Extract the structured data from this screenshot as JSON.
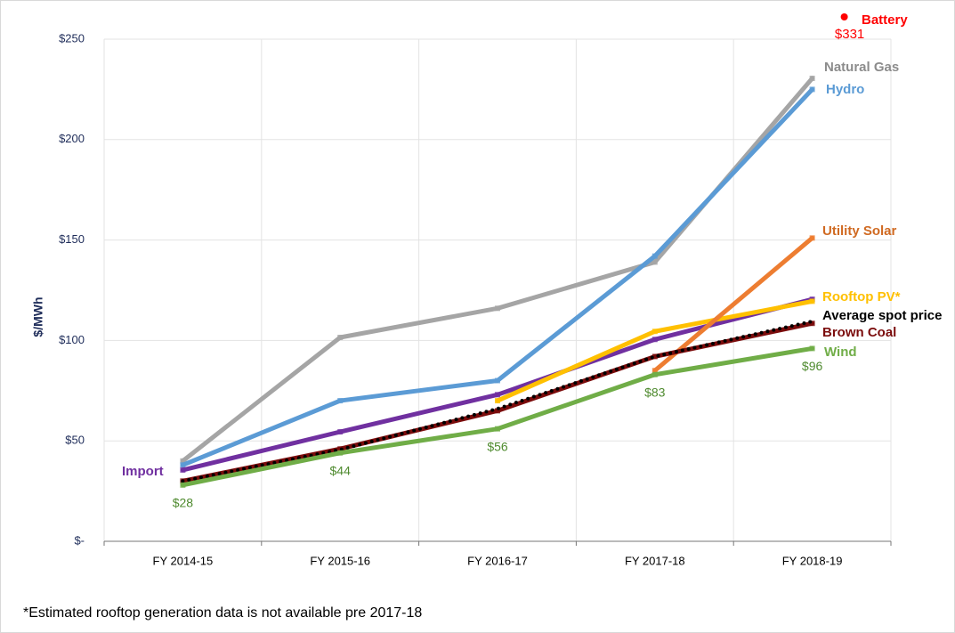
{
  "chart_data": {
    "type": "line",
    "y_label": "$/MWh",
    "footnote": "*Estimated rooftop generation data is not available pre 2017-18",
    "categories": [
      "FY 2014-15",
      "FY 2015-16",
      "FY 2016-17",
      "FY 2017-18",
      "FY 2018-19"
    ],
    "ylim": [
      0,
      250
    ],
    "yticks": [
      {
        "value": 0,
        "label": "$-"
      },
      {
        "value": 50,
        "label": "$50"
      },
      {
        "value": 100,
        "label": "$100"
      },
      {
        "value": 150,
        "label": "$150"
      },
      {
        "value": 200,
        "label": "$200"
      },
      {
        "value": 250,
        "label": "$250"
      }
    ],
    "grid": true,
    "series": [
      {
        "name": "Natural Gas",
        "color": "#a5a5a5",
        "values": [
          40,
          101.5,
          116,
          139,
          230.5
        ]
      },
      {
        "name": "Hydro",
        "color": "#5b9bd5",
        "values": [
          38,
          70,
          80,
          142,
          225
        ]
      },
      {
        "name": "Import",
        "color": "#7030a0",
        "values": [
          35.5,
          54.5,
          73,
          100.5,
          120.5
        ]
      },
      {
        "name": "Rooftop PV*",
        "color": "#ffc000",
        "values": [
          null,
          null,
          70,
          104.5,
          119.5
        ]
      },
      {
        "name": "Utility Solar",
        "color": "#ed7d31",
        "values": [
          null,
          null,
          null,
          85,
          151
        ]
      },
      {
        "name": "Brown Coal",
        "color": "#7b0c0c",
        "values": [
          30,
          46,
          65,
          92,
          108.5
        ]
      },
      {
        "name": "Average spot price",
        "color": "#000000",
        "values": [
          30,
          45.6,
          66,
          92,
          109.5
        ]
      },
      {
        "name": "Wind",
        "color": "#70ad47",
        "values": [
          28,
          44,
          56,
          83,
          96
        ],
        "value_labels": [
          "$28",
          "$44",
          "$56",
          "$83",
          "$96"
        ]
      },
      {
        "name": "Battery",
        "color": "#ff0000",
        "values": [
          null,
          null,
          null,
          null,
          331
        ],
        "value_labels": [
          null,
          null,
          null,
          null,
          "$331"
        ]
      }
    ]
  }
}
